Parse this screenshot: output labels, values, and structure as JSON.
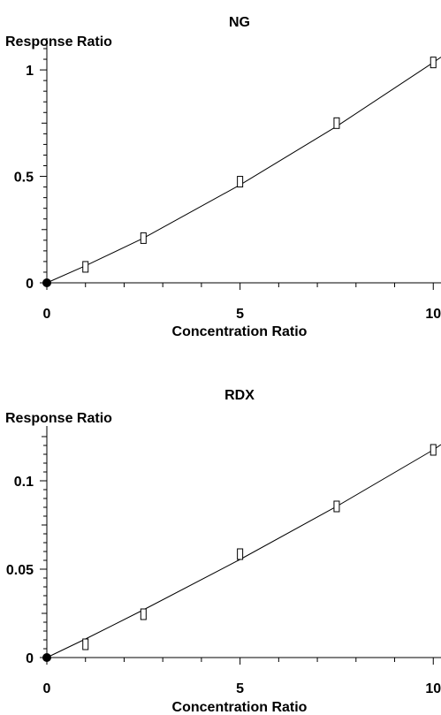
{
  "chart_data": [
    {
      "type": "scatter",
      "title": "NG",
      "xlabel": "Concentration Ratio",
      "ylabel": "Response Ratio",
      "xlim": [
        0,
        10.2
      ],
      "ylim": [
        0,
        1.1
      ],
      "xticks": [
        0,
        5,
        10
      ],
      "yticks": [
        0,
        0.5,
        1
      ],
      "xtick_labels": [
        "0",
        "5",
        "10"
      ],
      "ytick_labels": [
        "0",
        "0.5",
        "1"
      ],
      "series": [
        {
          "x": [
            0,
            1,
            2.5,
            5,
            7.5,
            10
          ],
          "y": [
            0,
            0.075,
            0.21,
            0.475,
            0.75,
            1.035
          ]
        }
      ],
      "fit_curve": {
        "x": [
          0,
          1,
          2.5,
          5,
          7.5,
          10,
          10.2
        ],
        "y": [
          0,
          0.08,
          0.21,
          0.46,
          0.735,
          1.035,
          1.06
        ]
      },
      "grid": false
    },
    {
      "type": "scatter",
      "title": "RDX",
      "xlabel": "Concentration Ratio",
      "ylabel": "Response Ratio",
      "xlim": [
        0,
        10.2
      ],
      "ylim": [
        0,
        0.125
      ],
      "xticks": [
        0,
        5,
        10
      ],
      "yticks": [
        0,
        0.05,
        0.1
      ],
      "xtick_labels": [
        "0",
        "5",
        "10"
      ],
      "ytick_labels": [
        "0",
        "0.05",
        "0.1"
      ],
      "series": [
        {
          "x": [
            0,
            1,
            2.5,
            5,
            7.5,
            10
          ],
          "y": [
            0,
            0.0075,
            0.0245,
            0.0585,
            0.0855,
            0.1175
          ]
        }
      ],
      "fit_curve": {
        "x": [
          0,
          1,
          2.5,
          5,
          7.5,
          10,
          10.2
        ],
        "y": [
          0,
          0.0105,
          0.027,
          0.0555,
          0.0855,
          0.1175,
          0.1205
        ]
      },
      "grid": false
    }
  ]
}
